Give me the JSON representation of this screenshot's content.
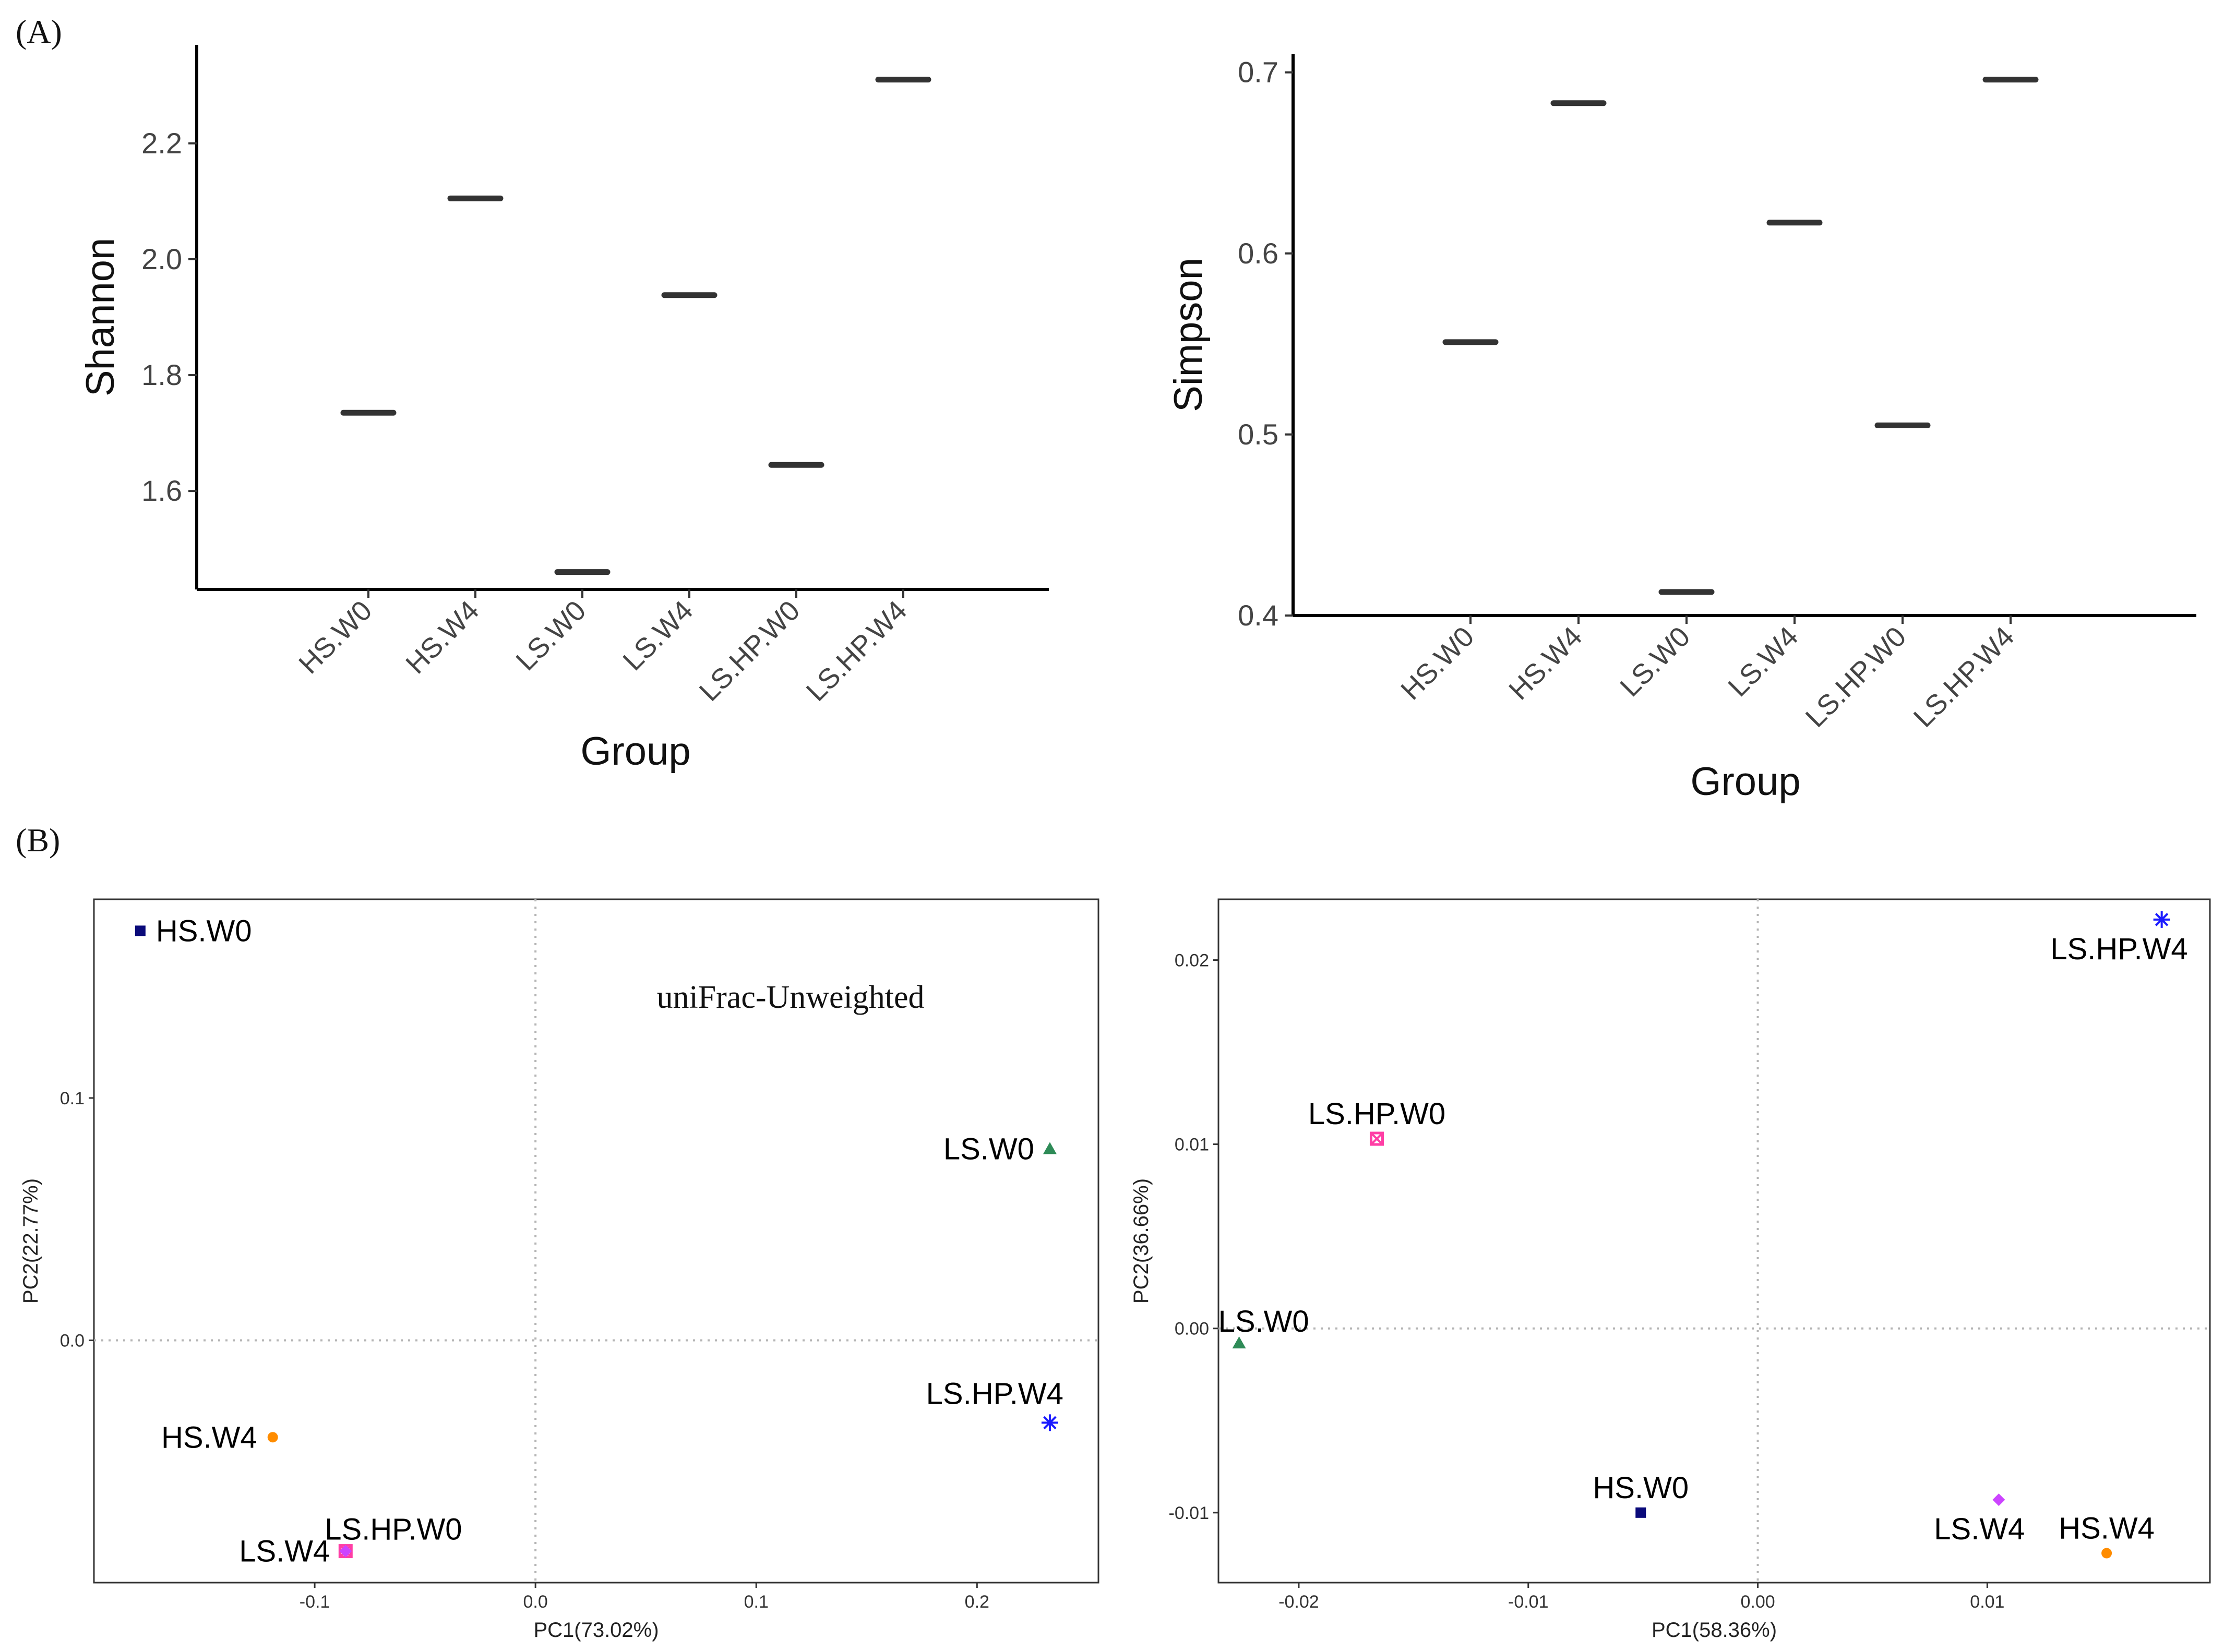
{
  "panel_labels": {
    "a": "(A)",
    "b": "(B)"
  },
  "chart_data": [
    {
      "type": "box",
      "title": "",
      "xlabel": "Group",
      "ylabel": "Shannon",
      "categories": [
        "HS.W0",
        "HS.W4",
        "LS.W0",
        "LS.W4",
        "LS.HP.W0",
        "LS.HP.W4"
      ],
      "values": [
        1.735,
        2.105,
        1.46,
        1.938,
        1.645,
        2.31
      ],
      "ylim": [
        1.43,
        2.37
      ],
      "yticks": [
        1.6,
        1.8,
        2.0,
        2.2
      ],
      "ytick_labels": [
        "1.6",
        "1.8",
        "2.0",
        "2.2"
      ]
    },
    {
      "type": "box",
      "title": "",
      "xlabel": "Group",
      "ylabel": "Simpson",
      "categories": [
        "HS.W0",
        "HS.W4",
        "LS.W0",
        "LS.W4",
        "LS.HP.W0",
        "LS.HP.W4"
      ],
      "values": [
        0.551,
        0.683,
        0.413,
        0.617,
        0.505,
        0.696
      ],
      "ylim": [
        0.4,
        0.71
      ],
      "yticks": [
        0.4,
        0.5,
        0.6,
        0.7
      ],
      "ytick_labels": [
        "0.4",
        "0.5",
        "0.6",
        "0.7"
      ]
    },
    {
      "type": "scatter",
      "title": "",
      "annotation": "uniFrac-Unweighted",
      "xlabel": "PC1(73.02%)",
      "ylabel": "PC2(22.77%)",
      "xlim": [
        -0.2,
        0.255
      ],
      "ylim": [
        -0.1,
        0.182
      ],
      "xticks": [
        -0.1,
        0.0,
        0.1,
        0.2
      ],
      "xtick_labels": [
        "-0.1",
        "0.0",
        "0.1",
        "0.2"
      ],
      "yticks": [
        0.0,
        0.1
      ],
      "ytick_labels": [
        "0.0",
        "0.1"
      ],
      "points": [
        {
          "label": "HS.W0",
          "x": -0.179,
          "y": 0.169,
          "color": "#0a0a7a",
          "marker": "square",
          "label_pos": "right"
        },
        {
          "label": "LS.W0",
          "x": 0.233,
          "y": 0.079,
          "color": "#2e8b57",
          "marker": "triangle",
          "label_pos": "left"
        },
        {
          "label": "LS.HP.W4",
          "x": 0.233,
          "y": -0.034,
          "color": "#1a1aff",
          "marker": "star",
          "label_pos": "above-left"
        },
        {
          "label": "HS.W4",
          "x": -0.119,
          "y": -0.04,
          "color": "#ff8c00",
          "marker": "circle",
          "label_pos": "left"
        },
        {
          "label": "LS.HP.W0",
          "x": -0.086,
          "y": -0.087,
          "color": "#ff3ea5",
          "marker": "square-x",
          "label_pos": "above-right"
        },
        {
          "label": "LS.W4",
          "x": -0.086,
          "y": -0.087,
          "color": "#cc44ff",
          "marker": "diamond",
          "label_pos": "left"
        }
      ]
    },
    {
      "type": "scatter",
      "title": "",
      "xlabel": "PC1(58.36%)",
      "ylabel": "PC2(36.66%)",
      "xlim": [
        -0.0235,
        0.0197
      ],
      "ylim": [
        -0.0138,
        0.0233
      ],
      "xticks": [
        -0.02,
        -0.01,
        0.0,
        0.01
      ],
      "xtick_labels": [
        "-0.02",
        "-0.01",
        "0.00",
        "0.01"
      ],
      "yticks": [
        -0.01,
        0.0,
        0.01,
        0.02
      ],
      "ytick_labels": [
        "-0.01",
        "0.00",
        "0.01",
        "0.02"
      ],
      "points": [
        {
          "label": "LS.HP.W4",
          "x": 0.0176,
          "y": 0.0222,
          "color": "#1a1aff",
          "marker": "star",
          "label_pos": "below-left"
        },
        {
          "label": "LS.HP.W0",
          "x": -0.0166,
          "y": 0.0103,
          "color": "#ff3ea5",
          "marker": "square-x",
          "label_pos": "above"
        },
        {
          "label": "LS.W0",
          "x": -0.0226,
          "y": -0.0008,
          "color": "#2e8b57",
          "marker": "triangle",
          "label_pos": "above-right"
        },
        {
          "label": "HS.W0",
          "x": -0.0051,
          "y": -0.01,
          "color": "#0a0a7a",
          "marker": "square",
          "label_pos": "above"
        },
        {
          "label": "LS.W4",
          "x": 0.0105,
          "y": -0.0093,
          "color": "#cc44ff",
          "marker": "diamond",
          "label_pos": "below-left"
        },
        {
          "label": "HS.W4",
          "x": 0.0152,
          "y": -0.0122,
          "color": "#ff8c00",
          "marker": "circle",
          "label_pos": "above"
        }
      ]
    }
  ]
}
